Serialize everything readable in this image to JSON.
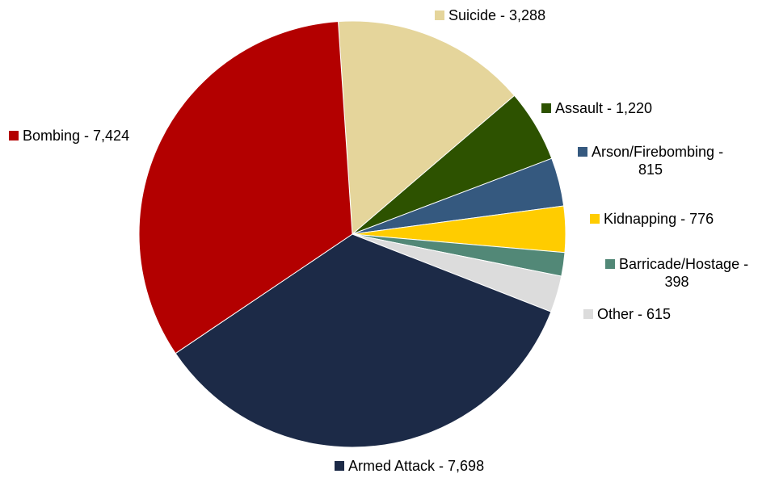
{
  "chart_data": {
    "type": "pie",
    "slices": [
      {
        "label": "Suicide - 3,288",
        "name": "Suicide",
        "value": 3288,
        "color": "#e5d59b"
      },
      {
        "label": "Assault - 1,220",
        "name": "Assault",
        "value": 1220,
        "color": "#2d5200"
      },
      {
        "label_line1": "Arson/Firebombing -",
        "label_line2": "815",
        "name": "Arson/Firebombing",
        "value": 815,
        "color": "#35597f"
      },
      {
        "label": "Kidnapping - 776",
        "name": "Kidnapping",
        "value": 776,
        "color": "#ffcc00"
      },
      {
        "label_line1": "Barricade/Hostage -",
        "label_line2": "398",
        "name": "Barricade/Hostage",
        "value": 398,
        "color": "#528877"
      },
      {
        "label": "Other - 615",
        "name": "Other",
        "value": 615,
        "color": "#dcdcdc"
      },
      {
        "label": "Armed Attack - 7,698",
        "name": "Armed Attack",
        "value": 7698,
        "color": "#1c2a47"
      },
      {
        "label": "Bombing - 7,424",
        "name": "Bombing",
        "value": 7424,
        "color": "#b30000"
      }
    ]
  }
}
